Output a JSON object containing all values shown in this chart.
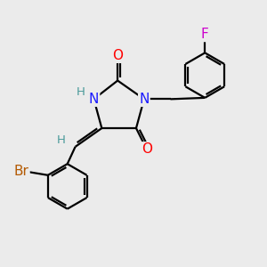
{
  "background_color": "#ebebeb",
  "atom_colors": {
    "C": "#000000",
    "N": "#1a1aff",
    "O": "#ff0000",
    "Br": "#b35900",
    "F": "#cc00cc",
    "H": "#4a9a9a"
  },
  "bond_color": "#000000",
  "bond_width": 1.6,
  "font_size_atom": 11,
  "font_size_small": 9.5
}
